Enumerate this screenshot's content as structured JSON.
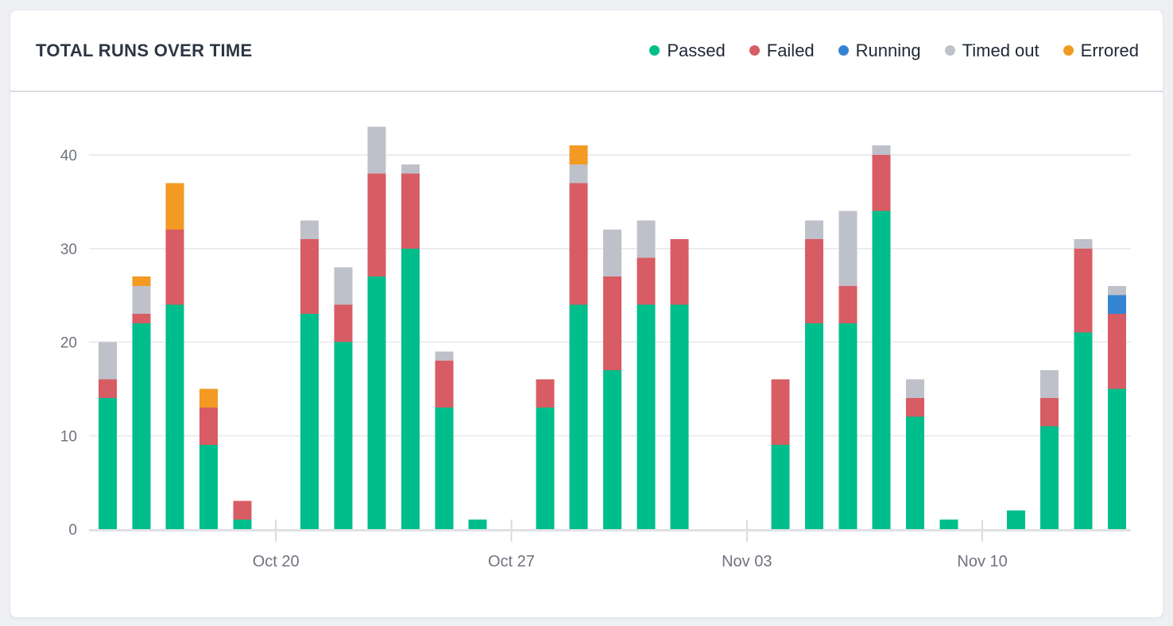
{
  "card": {
    "title": "TOTAL RUNS OVER TIME"
  },
  "legend": [
    {
      "label": "Passed",
      "color": "#00be8b",
      "icon": "dot"
    },
    {
      "label": "Failed",
      "color": "#d85c63",
      "icon": "dot"
    },
    {
      "label": "Running",
      "color": "#3484d4",
      "icon": "dot"
    },
    {
      "label": "Timed out",
      "color": "#bfc1ca",
      "icon": "dot"
    },
    {
      "label": "Errored",
      "color": "#f29a22",
      "icon": "dot"
    }
  ],
  "axis": {
    "y_tick_labels": [
      "0",
      "10",
      "20",
      "30",
      "40"
    ],
    "x_tick_labels": [
      "Oct 20",
      "Oct 27",
      "Nov 03",
      "Nov 10"
    ]
  },
  "chart_data": {
    "type": "bar",
    "stacked": true,
    "title": "TOTAL RUNS OVER TIME",
    "xlabel": "",
    "ylabel": "",
    "ylim": [
      0,
      44
    ],
    "yticks": [
      0,
      10,
      20,
      30,
      40
    ],
    "grid": "horizontal",
    "legend_position": "top-right",
    "x_slot_count": 31,
    "x_ticks": [
      {
        "slot": 5,
        "label": "Oct 20"
      },
      {
        "slot": 12,
        "label": "Oct 27"
      },
      {
        "slot": 19,
        "label": "Nov 03"
      },
      {
        "slot": 26,
        "label": "Nov 10"
      }
    ],
    "series": [
      {
        "name": "Passed",
        "color": "#00be8b",
        "values": [
          14,
          22,
          24,
          9,
          1,
          0,
          23,
          20,
          27,
          30,
          13,
          1,
          0,
          13,
          24,
          17,
          24,
          24,
          0,
          0,
          9,
          22,
          22,
          34,
          12,
          1,
          0,
          2,
          11,
          21,
          15
        ]
      },
      {
        "name": "Failed",
        "color": "#d85c63",
        "values": [
          2,
          1,
          8,
          4,
          2,
          0,
          8,
          4,
          11,
          8,
          5,
          0,
          0,
          3,
          13,
          10,
          5,
          7,
          0,
          0,
          7,
          9,
          4,
          6,
          2,
          0,
          0,
          0,
          3,
          9,
          8
        ]
      },
      {
        "name": "Running",
        "color": "#3484d4",
        "values": [
          0,
          0,
          0,
          0,
          0,
          0,
          0,
          0,
          0,
          0,
          0,
          0,
          0,
          0,
          0,
          0,
          0,
          0,
          0,
          0,
          0,
          0,
          0,
          0,
          0,
          0,
          0,
          0,
          0,
          0,
          2
        ]
      },
      {
        "name": "Timed out",
        "color": "#bfc1ca",
        "values": [
          4,
          3,
          0,
          0,
          0,
          0,
          2,
          4,
          5,
          1,
          1,
          0,
          0,
          0,
          2,
          5,
          4,
          0,
          0,
          0,
          0,
          2,
          8,
          1,
          2,
          0,
          0,
          0,
          3,
          1,
          1
        ]
      },
      {
        "name": "Errored",
        "color": "#f29a22",
        "values": [
          0,
          1,
          5,
          2,
          0,
          0,
          0,
          0,
          0,
          0,
          0,
          0,
          0,
          0,
          2,
          0,
          0,
          0,
          0,
          0,
          0,
          0,
          0,
          0,
          0,
          0,
          0,
          0,
          0,
          0,
          0
        ]
      }
    ],
    "bar_totals": [
      20,
      27,
      37,
      15,
      3,
      0,
      33,
      28,
      43,
      39,
      19,
      1,
      0,
      16,
      41,
      32,
      33,
      31,
      0,
      0,
      16,
      33,
      34,
      41,
      16,
      1,
      0,
      2,
      17,
      31,
      26
    ]
  }
}
